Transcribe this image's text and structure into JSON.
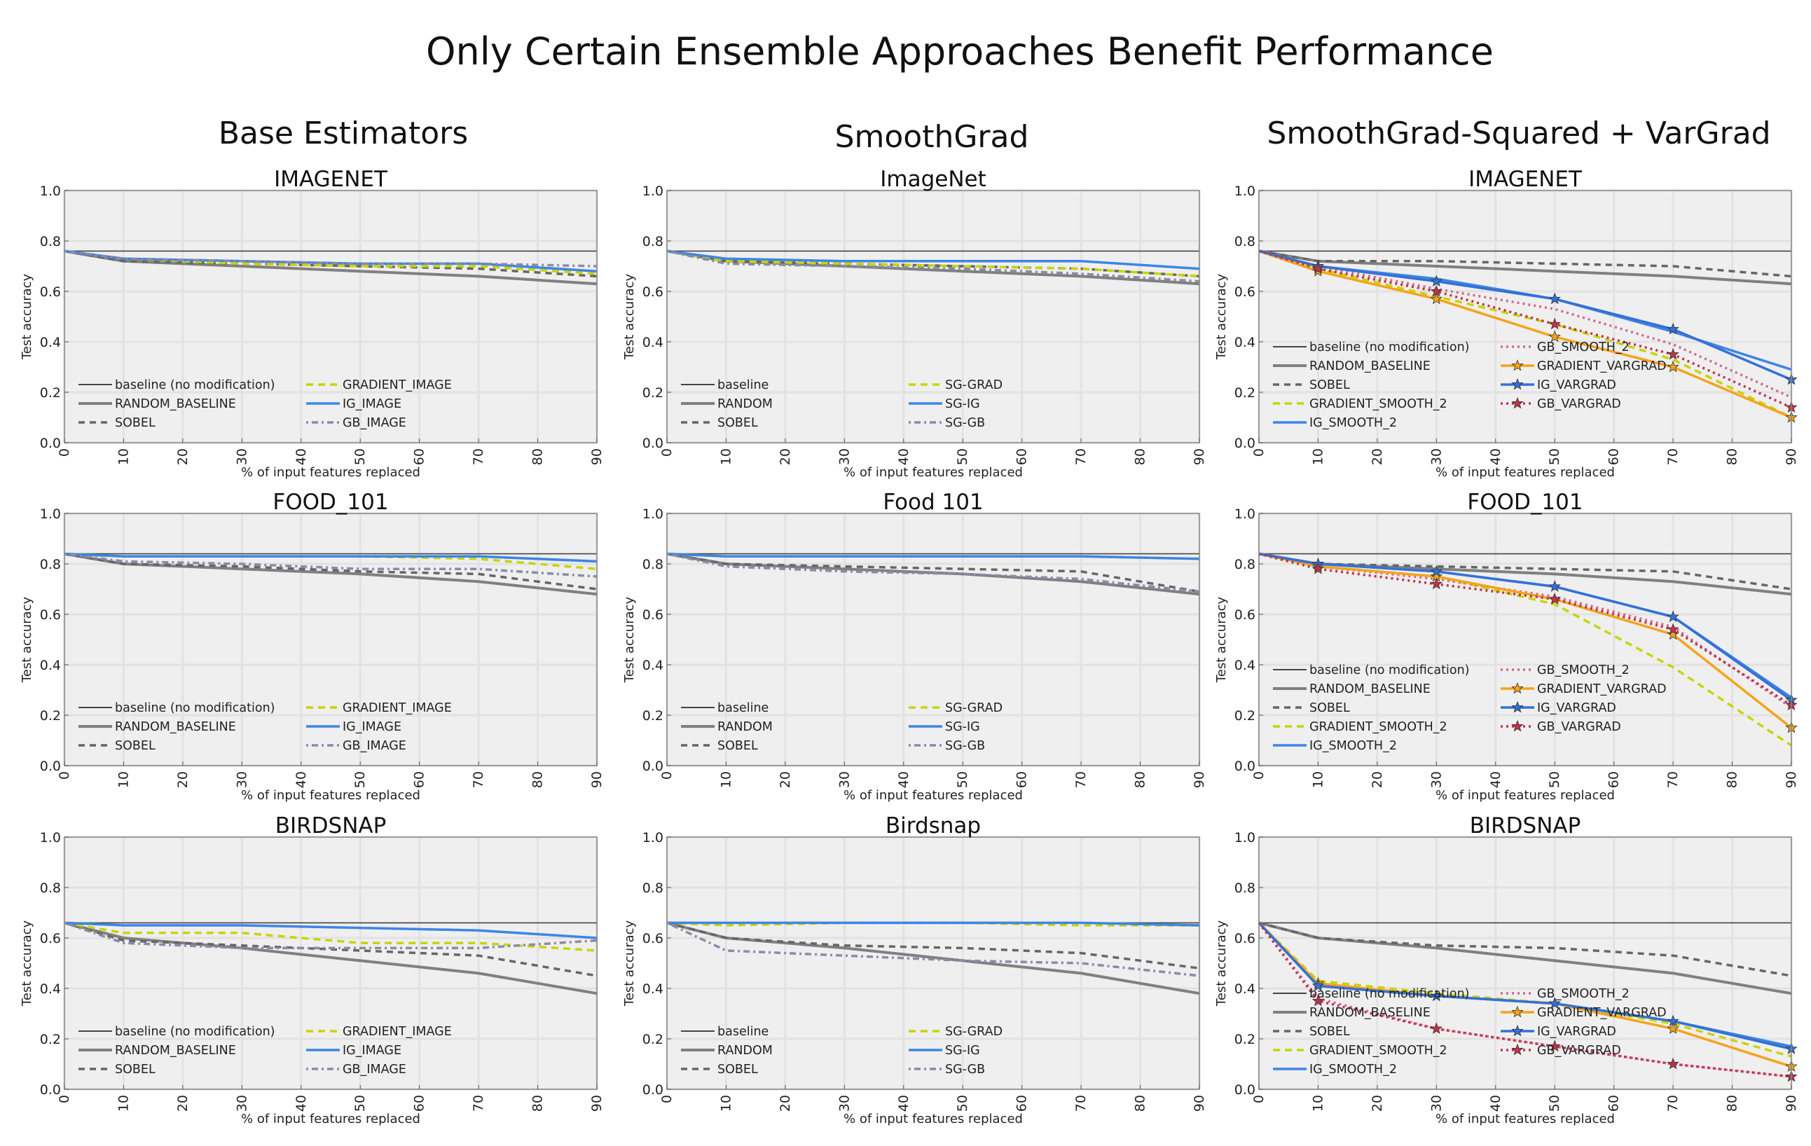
{
  "figure": {
    "title": "Only Certain Ensemble Approaches Benefit Performance",
    "columns": [
      "Base Estimators",
      "SmoothGrad",
      "SmoothGrad-Squared + VarGrad"
    ]
  },
  "colors": {
    "baseline": "#444444",
    "random": "#808080",
    "sobel": "#666666",
    "gradient": "#c8d400",
    "ig": "#3d85e6",
    "gb": "#8a8aa8",
    "gradient_vargrad": "#f5a31a",
    "ig_vargrad": "#3471d6",
    "gb_vargrad": "#c0334a",
    "gb_smooth": "#d06a8a",
    "panel_bg": "#efefef",
    "grid": "#e2e2e2"
  },
  "chart_data": [
    {
      "type": "line",
      "title": "IMAGENET",
      "xlabel": "% of input features replaced",
      "ylabel": "Test accuracy",
      "xlim": [
        0,
        90
      ],
      "ylim": [
        0,
        1.0
      ],
      "grid": true,
      "legend": "lower-left",
      "x": [
        0,
        10,
        30,
        50,
        70,
        90
      ],
      "series": [
        {
          "name": "baseline (no modification)",
          "style": "baseline",
          "values": [
            0.76,
            0.76,
            0.76,
            0.76,
            0.76,
            0.76
          ]
        },
        {
          "name": "RANDOM_BASELINE",
          "style": "random",
          "values": [
            0.76,
            0.72,
            0.7,
            0.68,
            0.66,
            0.63
          ]
        },
        {
          "name": "SOBEL",
          "style": "sobel",
          "values": [
            0.76,
            0.72,
            0.71,
            0.7,
            0.69,
            0.66
          ]
        },
        {
          "name": "GRADIENT_IMAGE",
          "style": "gradient",
          "values": [
            0.76,
            0.73,
            0.71,
            0.7,
            0.7,
            0.67
          ]
        },
        {
          "name": "IG_IMAGE",
          "style": "ig",
          "values": [
            0.76,
            0.73,
            0.72,
            0.71,
            0.71,
            0.68
          ]
        },
        {
          "name": "GB_IMAGE",
          "style": "gb",
          "values": [
            0.76,
            0.73,
            0.72,
            0.71,
            0.71,
            0.7
          ]
        }
      ]
    },
    {
      "type": "line",
      "title": "ImageNet",
      "xlabel": "% of input features replaced",
      "ylabel": "Test accuracy",
      "xlim": [
        0,
        90
      ],
      "ylim": [
        0,
        1.0
      ],
      "grid": true,
      "legend": "lower-left",
      "x": [
        0,
        10,
        30,
        50,
        70,
        90
      ],
      "series": [
        {
          "name": "baseline",
          "style": "baseline",
          "values": [
            0.76,
            0.76,
            0.76,
            0.76,
            0.76,
            0.76
          ]
        },
        {
          "name": "RANDOM",
          "style": "random",
          "values": [
            0.76,
            0.72,
            0.7,
            0.68,
            0.66,
            0.63
          ]
        },
        {
          "name": "SOBEL",
          "style": "sobel",
          "values": [
            0.76,
            0.72,
            0.71,
            0.7,
            0.69,
            0.66
          ]
        },
        {
          "name": "SG-GRAD",
          "style": "gradient",
          "values": [
            0.76,
            0.72,
            0.71,
            0.7,
            0.69,
            0.66
          ]
        },
        {
          "name": "SG-IG",
          "style": "ig",
          "values": [
            0.76,
            0.73,
            0.72,
            0.72,
            0.72,
            0.69
          ]
        },
        {
          "name": "SG-GB",
          "style": "gb",
          "values": [
            0.76,
            0.71,
            0.7,
            0.69,
            0.67,
            0.64
          ]
        }
      ]
    },
    {
      "type": "line",
      "title": "IMAGENET",
      "xlabel": "% of input features replaced",
      "ylabel": "Test accuracy",
      "xlim": [
        0,
        90
      ],
      "ylim": [
        0,
        1.0
      ],
      "grid": true,
      "legend": "lower-left",
      "x": [
        0,
        10,
        30,
        50,
        70,
        90
      ],
      "series": [
        {
          "name": "baseline (no modification)",
          "style": "baseline",
          "values": [
            0.76,
            0.76,
            0.76,
            0.76,
            0.76,
            0.76
          ]
        },
        {
          "name": "RANDOM_BASELINE",
          "style": "random",
          "values": [
            0.76,
            0.72,
            0.7,
            0.68,
            0.66,
            0.63
          ]
        },
        {
          "name": "SOBEL",
          "style": "sobel",
          "values": [
            0.76,
            0.72,
            0.72,
            0.71,
            0.7,
            0.66
          ]
        },
        {
          "name": "GRADIENT_SMOOTH_2",
          "style": "gradient",
          "values": [
            0.76,
            0.69,
            0.58,
            0.47,
            0.33,
            0.1
          ]
        },
        {
          "name": "IG_SMOOTH_2",
          "style": "ig",
          "values": [
            0.76,
            0.7,
            0.65,
            0.57,
            0.44,
            0.29
          ]
        },
        {
          "name": "GB_SMOOTH_2",
          "style": "gb_smooth",
          "values": [
            0.76,
            0.7,
            0.61,
            0.53,
            0.39,
            0.18
          ]
        },
        {
          "name": "GRADIENT_VARGRAD",
          "style": "gradient_vargrad",
          "values": [
            0.76,
            0.68,
            0.57,
            0.42,
            0.3,
            0.1
          ]
        },
        {
          "name": "IG_VARGRAD",
          "style": "ig_vargrad",
          "values": [
            0.76,
            0.7,
            0.64,
            0.57,
            0.45,
            0.25
          ]
        },
        {
          "name": "GB_VARGRAD",
          "style": "gb_vargrad",
          "values": [
            0.76,
            0.69,
            0.6,
            0.47,
            0.35,
            0.14
          ]
        }
      ]
    },
    {
      "type": "line",
      "title": "FOOD_101",
      "xlabel": "% of input features replaced",
      "ylabel": "Test accuracy",
      "xlim": [
        0,
        90
      ],
      "ylim": [
        0,
        1.0
      ],
      "grid": true,
      "legend": "lower-left",
      "x": [
        0,
        10,
        30,
        50,
        70,
        90
      ],
      "series": [
        {
          "name": "baseline (no modification)",
          "style": "baseline",
          "values": [
            0.84,
            0.84,
            0.84,
            0.84,
            0.84,
            0.84
          ]
        },
        {
          "name": "RANDOM_BASELINE",
          "style": "random",
          "values": [
            0.84,
            0.8,
            0.78,
            0.76,
            0.73,
            0.68
          ]
        },
        {
          "name": "SOBEL",
          "style": "sobel",
          "values": [
            0.84,
            0.8,
            0.79,
            0.77,
            0.76,
            0.7
          ]
        },
        {
          "name": "GRADIENT_IMAGE",
          "style": "gradient",
          "values": [
            0.84,
            0.83,
            0.83,
            0.83,
            0.82,
            0.78
          ]
        },
        {
          "name": "IG_IMAGE",
          "style": "ig",
          "values": [
            0.84,
            0.83,
            0.83,
            0.83,
            0.83,
            0.81
          ]
        },
        {
          "name": "GB_IMAGE",
          "style": "gb",
          "values": [
            0.84,
            0.81,
            0.8,
            0.78,
            0.78,
            0.75
          ]
        }
      ]
    },
    {
      "type": "line",
      "title": "Food 101",
      "xlabel": "% of input features replaced",
      "ylabel": "Test accuracy",
      "xlim": [
        0,
        90
      ],
      "ylim": [
        0,
        1.0
      ],
      "grid": true,
      "legend": "lower-left",
      "x": [
        0,
        10,
        30,
        50,
        70,
        90
      ],
      "series": [
        {
          "name": "baseline",
          "style": "baseline",
          "values": [
            0.84,
            0.84,
            0.84,
            0.84,
            0.84,
            0.84
          ]
        },
        {
          "name": "RANDOM",
          "style": "random",
          "values": [
            0.84,
            0.8,
            0.78,
            0.76,
            0.73,
            0.68
          ]
        },
        {
          "name": "SOBEL",
          "style": "sobel",
          "values": [
            0.84,
            0.8,
            0.79,
            0.78,
            0.77,
            0.69
          ]
        },
        {
          "name": "SG-GRAD",
          "style": "gradient",
          "values": [
            0.84,
            0.83,
            0.83,
            0.83,
            0.83,
            0.82
          ]
        },
        {
          "name": "SG-IG",
          "style": "ig",
          "values": [
            0.84,
            0.83,
            0.83,
            0.83,
            0.83,
            0.82
          ]
        },
        {
          "name": "SG-GB",
          "style": "gb",
          "values": [
            0.84,
            0.79,
            0.77,
            0.76,
            0.74,
            0.69
          ]
        }
      ]
    },
    {
      "type": "line",
      "title": "FOOD_101",
      "xlabel": "% of input features replaced",
      "ylabel": "Test accuracy",
      "xlim": [
        0,
        90
      ],
      "ylim": [
        0,
        1.0
      ],
      "grid": true,
      "legend": "lower-left",
      "x": [
        0,
        10,
        30,
        50,
        70,
        90
      ],
      "series": [
        {
          "name": "baseline (no modification)",
          "style": "baseline",
          "values": [
            0.84,
            0.84,
            0.84,
            0.84,
            0.84,
            0.84
          ]
        },
        {
          "name": "RANDOM_BASELINE",
          "style": "random",
          "values": [
            0.84,
            0.8,
            0.78,
            0.76,
            0.73,
            0.68
          ]
        },
        {
          "name": "SOBEL",
          "style": "sobel",
          "values": [
            0.84,
            0.8,
            0.79,
            0.78,
            0.77,
            0.7
          ]
        },
        {
          "name": "GRADIENT_SMOOTH_2",
          "style": "gradient",
          "values": [
            0.84,
            0.79,
            0.75,
            0.64,
            0.39,
            0.08
          ]
        },
        {
          "name": "IG_SMOOTH_2",
          "style": "ig",
          "values": [
            0.84,
            0.8,
            0.77,
            0.71,
            0.59,
            0.27
          ]
        },
        {
          "name": "GB_SMOOTH_2",
          "style": "gb_smooth",
          "values": [
            0.84,
            0.79,
            0.74,
            0.67,
            0.55,
            0.23
          ]
        },
        {
          "name": "GRADIENT_VARGRAD",
          "style": "gradient_vargrad",
          "values": [
            0.84,
            0.79,
            0.75,
            0.66,
            0.52,
            0.15
          ]
        },
        {
          "name": "IG_VARGRAD",
          "style": "ig_vargrad",
          "values": [
            0.84,
            0.8,
            0.77,
            0.71,
            0.59,
            0.26
          ]
        },
        {
          "name": "GB_VARGRAD",
          "style": "gb_vargrad",
          "values": [
            0.84,
            0.78,
            0.72,
            0.66,
            0.54,
            0.24
          ]
        }
      ]
    },
    {
      "type": "line",
      "title": "BIRDSNAP",
      "xlabel": "% of input features replaced",
      "ylabel": "Test accuracy",
      "xlim": [
        0,
        90
      ],
      "ylim": [
        0,
        1.0
      ],
      "grid": true,
      "legend": "lower-left",
      "x": [
        0,
        10,
        30,
        50,
        70,
        90
      ],
      "series": [
        {
          "name": "baseline (no modification)",
          "style": "baseline",
          "values": [
            0.66,
            0.66,
            0.66,
            0.66,
            0.66,
            0.66
          ]
        },
        {
          "name": "RANDOM_BASELINE",
          "style": "random",
          "values": [
            0.66,
            0.6,
            0.56,
            0.51,
            0.46,
            0.38
          ]
        },
        {
          "name": "SOBEL",
          "style": "sobel",
          "values": [
            0.66,
            0.59,
            0.57,
            0.55,
            0.53,
            0.45
          ]
        },
        {
          "name": "GRADIENT_IMAGE",
          "style": "gradient",
          "values": [
            0.66,
            0.62,
            0.62,
            0.58,
            0.58,
            0.55
          ]
        },
        {
          "name": "IG_IMAGE",
          "style": "ig",
          "values": [
            0.66,
            0.65,
            0.65,
            0.64,
            0.63,
            0.6
          ]
        },
        {
          "name": "GB_IMAGE",
          "style": "gb",
          "values": [
            0.66,
            0.58,
            0.56,
            0.56,
            0.56,
            0.59
          ]
        }
      ]
    },
    {
      "type": "line",
      "title": "Birdsnap",
      "xlabel": "% of input features replaced",
      "ylabel": "Test accuracy",
      "xlim": [
        0,
        90
      ],
      "ylim": [
        0,
        1.0
      ],
      "grid": true,
      "legend": "lower-left",
      "x": [
        0,
        10,
        30,
        50,
        70,
        90
      ],
      "series": [
        {
          "name": "baseline",
          "style": "baseline",
          "values": [
            0.66,
            0.66,
            0.66,
            0.66,
            0.66,
            0.66
          ]
        },
        {
          "name": "RANDOM",
          "style": "random",
          "values": [
            0.66,
            0.6,
            0.56,
            0.51,
            0.46,
            0.38
          ]
        },
        {
          "name": "SOBEL",
          "style": "sobel",
          "values": [
            0.66,
            0.6,
            0.57,
            0.56,
            0.54,
            0.48
          ]
        },
        {
          "name": "SG-GRAD",
          "style": "gradient",
          "values": [
            0.66,
            0.65,
            0.66,
            0.66,
            0.65,
            0.65
          ]
        },
        {
          "name": "SG-IG",
          "style": "ig",
          "values": [
            0.66,
            0.66,
            0.66,
            0.66,
            0.66,
            0.65
          ]
        },
        {
          "name": "SG-GB",
          "style": "gb",
          "values": [
            0.66,
            0.55,
            0.53,
            0.51,
            0.5,
            0.45
          ]
        }
      ]
    },
    {
      "type": "line",
      "title": "BIRDSNAP",
      "xlabel": "% of input features replaced",
      "ylabel": "Test accuracy",
      "xlim": [
        0,
        90
      ],
      "ylim": [
        0,
        1.0
      ],
      "grid": true,
      "legend": "lower-left",
      "x": [
        0,
        10,
        30,
        50,
        70,
        90
      ],
      "series": [
        {
          "name": "baseline (no modification)",
          "style": "baseline",
          "values": [
            0.66,
            0.66,
            0.66,
            0.66,
            0.66,
            0.66
          ]
        },
        {
          "name": "RANDOM_BASELINE",
          "style": "random",
          "values": [
            0.66,
            0.6,
            0.56,
            0.51,
            0.46,
            0.38
          ]
        },
        {
          "name": "SOBEL",
          "style": "sobel",
          "values": [
            0.66,
            0.6,
            0.57,
            0.56,
            0.53,
            0.45
          ]
        },
        {
          "name": "GRADIENT_SMOOTH_2",
          "style": "gradient",
          "values": [
            0.66,
            0.43,
            0.38,
            0.34,
            0.26,
            0.13
          ]
        },
        {
          "name": "IG_SMOOTH_2",
          "style": "ig",
          "values": [
            0.66,
            0.41,
            0.37,
            0.34,
            0.27,
            0.17
          ]
        },
        {
          "name": "GB_SMOOTH_2",
          "style": "gb_smooth",
          "values": [
            0.66,
            0.36,
            0.24,
            0.17,
            0.1,
            0.05
          ]
        },
        {
          "name": "GRADIENT_VARGRAD",
          "style": "gradient_vargrad",
          "values": [
            0.66,
            0.42,
            0.37,
            0.34,
            0.24,
            0.09
          ]
        },
        {
          "name": "IG_VARGRAD",
          "style": "ig_vargrad",
          "values": [
            0.66,
            0.41,
            0.37,
            0.34,
            0.27,
            0.16
          ]
        },
        {
          "name": "GB_VARGRAD",
          "style": "gb_vargrad",
          "values": [
            0.66,
            0.35,
            0.24,
            0.17,
            0.1,
            0.05
          ]
        }
      ]
    }
  ]
}
